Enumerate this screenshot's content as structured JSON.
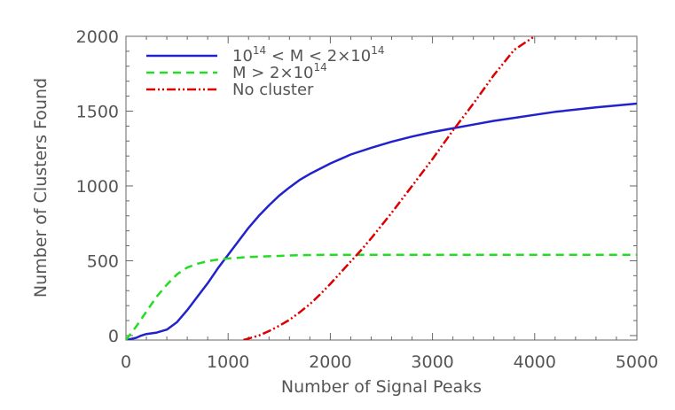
{
  "chart_data": {
    "type": "line",
    "xlabel": "Number of Signal Peaks",
    "ylabel": "Number of Clusters Found",
    "xlim": [
      0,
      5000
    ],
    "ylim": [
      -30,
      2000
    ],
    "xticks": [
      "0",
      "1000",
      "2000",
      "3000",
      "4000",
      "5000"
    ],
    "yticks": [
      "0",
      "500",
      "1000",
      "1500",
      "2000"
    ],
    "legend_position": "top-left",
    "series": [
      {
        "id": "mid",
        "legend": {
          "pre": "10",
          "sup1": "14",
          "mid": " < M < 2×10",
          "sup2": "14"
        },
        "color": "#2222cc",
        "dash": "solid",
        "x": [
          0,
          100,
          150,
          200,
          300,
          400,
          500,
          600,
          700,
          800,
          900,
          1000,
          1100,
          1200,
          1300,
          1400,
          1500,
          1600,
          1700,
          1800,
          1900,
          2000,
          2200,
          2400,
          2600,
          2800,
          3000,
          3200,
          3400,
          3600,
          3800,
          4000,
          4200,
          4400,
          4600,
          4800,
          5000
        ],
        "y": [
          -30,
          -15,
          0,
          10,
          20,
          40,
          90,
          170,
          260,
          350,
          450,
          540,
          630,
          720,
          800,
          870,
          935,
          990,
          1040,
          1080,
          1115,
          1150,
          1210,
          1255,
          1295,
          1330,
          1360,
          1385,
          1410,
          1435,
          1455,
          1475,
          1495,
          1510,
          1525,
          1538,
          1550
        ]
      },
      {
        "id": "high",
        "legend": {
          "pre": "M > 2×10",
          "sup1": "14",
          "mid": "",
          "sup2": ""
        },
        "color": "#22dd22",
        "dash": "dashed",
        "x": [
          0,
          100,
          200,
          300,
          400,
          500,
          600,
          700,
          800,
          900,
          1000,
          1200,
          1400,
          1600,
          1800,
          2000,
          2500,
          3000,
          4000,
          5000
        ],
        "y": [
          -30,
          60,
          160,
          260,
          340,
          410,
          455,
          480,
          497,
          508,
          515,
          525,
          530,
          535,
          538,
          540,
          540,
          540,
          540,
          540
        ]
      },
      {
        "id": "none",
        "legend": {
          "pre": "No cluster",
          "sup1": "",
          "mid": "",
          "sup2": ""
        },
        "color": "#dd0000",
        "dash": "dash-dot-dot",
        "x": [
          1150,
          1200,
          1300,
          1400,
          1500,
          1600,
          1700,
          1800,
          1900,
          2000,
          2100,
          2200,
          2300,
          2400,
          2600,
          2800,
          3000,
          3200,
          3400,
          3600,
          3800,
          4000
        ],
        "y": [
          -30,
          -20,
          0,
          30,
          65,
          105,
          155,
          210,
          275,
          345,
          420,
          495,
          570,
          650,
          820,
          1000,
          1180,
          1370,
          1550,
          1740,
          1910,
          2000
        ]
      }
    ]
  }
}
